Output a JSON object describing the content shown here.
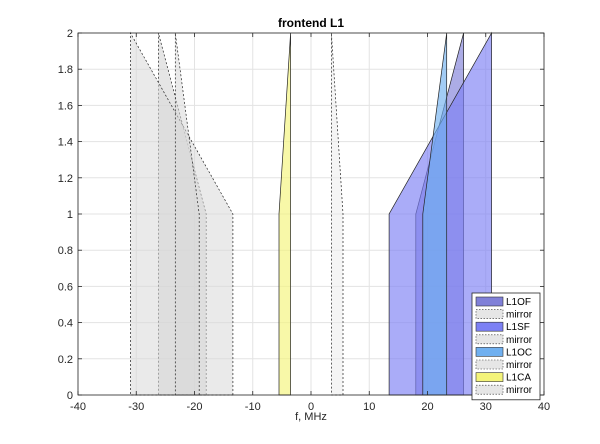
{
  "chart_data": {
    "type": "area",
    "title": "frontend L1",
    "xlabel": "f, MHz",
    "ylabel": "",
    "xlim": [
      -40,
      40
    ],
    "ylim": [
      0,
      2
    ],
    "xticks": [
      -40,
      -30,
      -20,
      -10,
      0,
      10,
      20,
      30,
      40
    ],
    "yticks": [
      0,
      0.2,
      0.4,
      0.6,
      0.8,
      1,
      1.2,
      1.4,
      1.6,
      1.8,
      2
    ],
    "xtick_labels": [
      "-40",
      "-30",
      "-20",
      "-10",
      "0",
      "10",
      "20",
      "30",
      "40"
    ],
    "ytick_labels": [
      "0",
      "0.2",
      "0.4",
      "0.6",
      "0.8",
      "1",
      "1.2",
      "1.4",
      "1.6",
      "1.8",
      "2"
    ],
    "grid": true,
    "legend_position": "bottom-right",
    "series": [
      {
        "name": "L1OF",
        "color": "#8080d8",
        "style": "solid",
        "points": [
          [
            18.0,
            0
          ],
          [
            18.0,
            1.0
          ],
          [
            26.2,
            2.0
          ],
          [
            26.2,
            0
          ]
        ]
      },
      {
        "name": "mirror",
        "color": "#d0d0d0",
        "style": "dotted",
        "points": [
          [
            -18.0,
            0
          ],
          [
            -18.0,
            1.0
          ],
          [
            -26.2,
            2.0
          ],
          [
            -26.2,
            0
          ]
        ]
      },
      {
        "name": "L1SF",
        "color": "#7c80f4",
        "style": "solid",
        "points": [
          [
            13.4,
            0
          ],
          [
            13.4,
            1.0
          ],
          [
            31.0,
            2.0
          ],
          [
            31.0,
            0
          ]
        ]
      },
      {
        "name": "mirror",
        "color": "#d8d8d8",
        "style": "dotted",
        "points": [
          [
            -13.4,
            0
          ],
          [
            -13.4,
            1.0
          ],
          [
            -31.0,
            2.0
          ],
          [
            -31.0,
            0
          ]
        ]
      },
      {
        "name": "L1OC",
        "color": "#70b0f0",
        "style": "solid",
        "points": [
          [
            19.2,
            0
          ],
          [
            19.2,
            1.0
          ],
          [
            23.3,
            2.0
          ],
          [
            23.3,
            0
          ]
        ]
      },
      {
        "name": "mirror",
        "color": "#d8d8d8",
        "style": "dotted",
        "points": [
          [
            -19.2,
            0
          ],
          [
            -19.2,
            1.0
          ],
          [
            -23.3,
            2.0
          ],
          [
            -23.3,
            0
          ]
        ]
      },
      {
        "name": "L1CA",
        "color": "#f4f47a",
        "style": "solid",
        "points": [
          [
            -5.5,
            0
          ],
          [
            -5.5,
            1.0
          ],
          [
            -3.5,
            2.0
          ],
          [
            -3.5,
            0
          ]
        ]
      },
      {
        "name": "mirror",
        "color": "#ececec",
        "style": "dotted",
        "points": [
          [
            5.5,
            0
          ],
          [
            5.5,
            1.0
          ],
          [
            3.5,
            2.0
          ],
          [
            3.5,
            0
          ]
        ]
      }
    ],
    "legend": [
      {
        "label": "L1OF",
        "color": "#8080d8",
        "style": "solid"
      },
      {
        "label": "mirror",
        "color": "#e6e6e6",
        "style": "dotted"
      },
      {
        "label": "L1SF",
        "color": "#7c80f4",
        "style": "solid"
      },
      {
        "label": "mirror",
        "color": "#e6e6e6",
        "style": "dotted"
      },
      {
        "label": "L1OC",
        "color": "#70b0f0",
        "style": "solid"
      },
      {
        "label": "mirror",
        "color": "#e6e6e6",
        "style": "dotted"
      },
      {
        "label": "L1CA",
        "color": "#f4f47a",
        "style": "solid"
      },
      {
        "label": "mirror",
        "color": "#e6e6e6",
        "style": "dotted"
      }
    ]
  }
}
